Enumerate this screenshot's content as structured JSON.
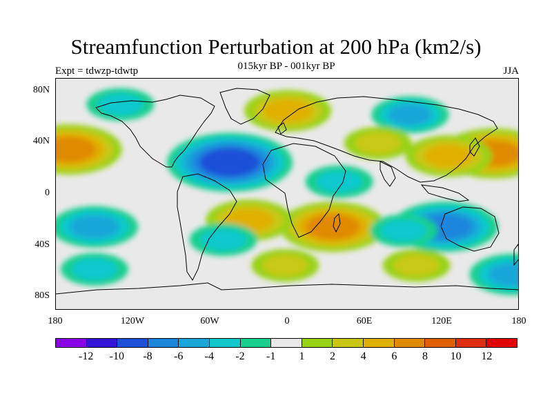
{
  "title": "Streamfunction Perturbation at 200 hPa (km2/s)",
  "subtitle": "015kyr BP - 001kyr BP",
  "left_label": "Expt = tdwzp-tdwtp",
  "right_label": "JJA",
  "lat_labels": [
    "80N",
    "40N",
    "0",
    "40S",
    "80S"
  ],
  "lon_labels": [
    "180",
    "120W",
    "60W",
    "0",
    "60E",
    "120E",
    "180"
  ],
  "colorbar": {
    "colors": [
      "#8a00e6",
      "#3414d6",
      "#1e4fd8",
      "#1a86dc",
      "#19a6d8",
      "#10c8cc",
      "#18cf8e",
      "#e8e8e8",
      "#98d214",
      "#c8c814",
      "#e0b000",
      "#e08a00",
      "#e06000",
      "#e02f10",
      "#e00000"
    ],
    "labels": [
      "-12",
      "-10",
      "-8",
      "-6",
      "-4",
      "-2",
      "-1",
      "1",
      "2",
      "4",
      "6",
      "8",
      "10",
      "12"
    ]
  },
  "chart_data": {
    "type": "heatmap",
    "title": "Streamfunction Perturbation at 200 hPa (km2/s)",
    "subtitle": "015kyr BP - 001kyr BP",
    "experiment": "Expt = tdwzp-tdwtp",
    "season": "JJA",
    "xlim": [
      -180,
      180
    ],
    "ylim": [
      -90,
      90
    ],
    "contour_levels": [
      -12,
      -10,
      -8,
      -6,
      -4,
      -2,
      -1,
      1,
      2,
      4,
      6,
      8,
      10,
      12
    ],
    "features": [
      {
        "lon": -45,
        "lat": 25,
        "value": -9
      },
      {
        "lon": -170,
        "lat": 35,
        "value": 7
      },
      {
        "lon": 160,
        "lat": 32,
        "value": 7
      },
      {
        "lon": 125,
        "lat": 30,
        "value": 5
      },
      {
        "lon": 35,
        "lat": -25,
        "value": 7
      },
      {
        "lon": -30,
        "lat": -20,
        "value": 5
      },
      {
        "lon": -2,
        "lat": -55,
        "value": 3
      },
      {
        "lon": 100,
        "lat": -55,
        "value": 3
      },
      {
        "lon": 122,
        "lat": -25,
        "value": -7
      },
      {
        "lon": 90,
        "lat": -28,
        "value": -3
      },
      {
        "lon": -150,
        "lat": -25,
        "value": -5
      },
      {
        "lon": -150,
        "lat": -58,
        "value": -3
      },
      {
        "lon": 175,
        "lat": -62,
        "value": -5
      },
      {
        "lon": -50,
        "lat": -35,
        "value": -3
      },
      {
        "lon": 40,
        "lat": 10,
        "value": -3
      },
      {
        "lon": 95,
        "lat": 62,
        "value": -4
      },
      {
        "lon": -130,
        "lat": 70,
        "value": -3
      },
      {
        "lon": 0,
        "lat": 65,
        "value": 5
      },
      {
        "lon": 70,
        "lat": 40,
        "value": 3
      }
    ]
  }
}
